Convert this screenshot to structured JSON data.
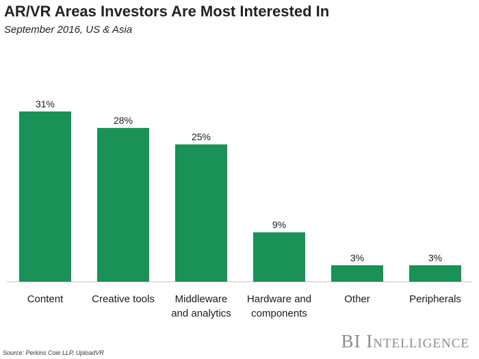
{
  "header": {
    "title": "AR/VR Areas Investors Are Most Interested In",
    "subtitle": "September 2016, US & Asia"
  },
  "footer": {
    "source": "Source: Perkins Coie LLP, UploadVR",
    "brand": "BI Intelligence"
  },
  "colors": {
    "bar": "#1a9156",
    "axis": "#bfbfbf"
  },
  "chart_data": {
    "type": "bar",
    "title": "AR/VR Areas Investors Are Most Interested In",
    "subtitle": "September 2016, US & Asia",
    "categories": [
      "Content",
      "Creative tools",
      "Middleware and analytics",
      "Hardware and components",
      "Other",
      "Peripherals"
    ],
    "category_lines": [
      [
        "Content"
      ],
      [
        "Creative tools"
      ],
      [
        "Middleware",
        "and analytics"
      ],
      [
        "Hardware and",
        "components"
      ],
      [
        "Other"
      ],
      [
        "Peripherals"
      ]
    ],
    "values": [
      31,
      28,
      25,
      9,
      3,
      3
    ],
    "value_labels": [
      "31%",
      "28%",
      "25%",
      "9%",
      "3%",
      "3%"
    ],
    "unit": "%",
    "ylim": [
      0,
      31
    ],
    "xlabel": "",
    "ylabel": "",
    "grid": false,
    "legend": "none"
  }
}
